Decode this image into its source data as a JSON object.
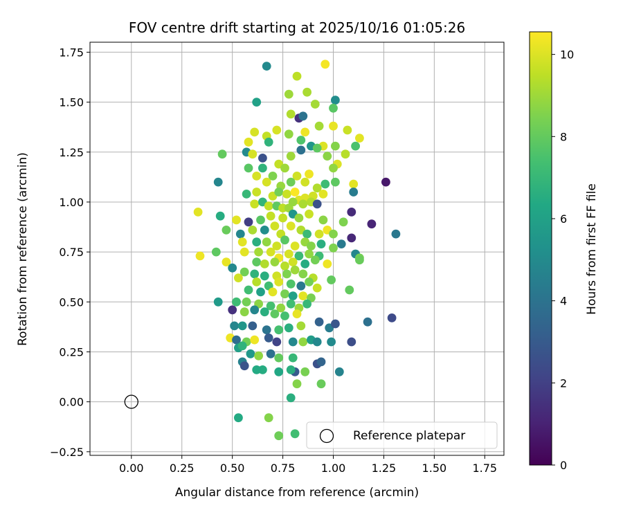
{
  "chart_data": {
    "type": "scatter",
    "title": "FOV centre drift starting at 2025/10/16 01:05:26",
    "xlabel": "Angular distance from reference (arcmin)",
    "ylabel": "Rotation from reference (arcmin)",
    "xlim": [
      -0.205,
      1.845
    ],
    "ylim": [
      -0.268,
      1.8
    ],
    "xticks": [
      0.0,
      0.25,
      0.5,
      0.75,
      1.0,
      1.25,
      1.5,
      1.75
    ],
    "xtick_labels": [
      "0.00",
      "0.25",
      "0.50",
      "0.75",
      "1.00",
      "1.25",
      "1.50",
      "1.75"
    ],
    "yticks": [
      -0.25,
      0.0,
      0.25,
      0.5,
      0.75,
      1.0,
      1.25,
      1.5,
      1.75
    ],
    "ytick_labels": [
      "−0.25",
      "0.00",
      "0.25",
      "0.50",
      "0.75",
      "1.00",
      "1.25",
      "1.50",
      "1.75"
    ],
    "grid": true,
    "colormap": "viridis",
    "colorbar": {
      "label": "Hours from first FF file",
      "range": [
        0,
        10.55
      ],
      "ticks": [
        0,
        2,
        4,
        6,
        8,
        10
      ],
      "tick_labels": [
        "0",
        "2",
        "4",
        "6",
        "8",
        "10"
      ]
    },
    "legend": {
      "position": "lower-right",
      "entries": [
        {
          "label": "Reference platepar",
          "marker": "open-circle"
        }
      ]
    },
    "reference_point": {
      "x": 0.0,
      "y": 0.0
    },
    "points": [
      [
        0.67,
        1.68,
        5.0
      ],
      [
        0.82,
        1.63,
        9.5
      ],
      [
        0.96,
        1.69,
        10.4
      ],
      [
        0.87,
        1.55,
        9.2
      ],
      [
        0.62,
        1.5,
        6.0
      ],
      [
        1.01,
        1.51,
        5.1
      ],
      [
        0.78,
        1.54,
        9.0
      ],
      [
        1.0,
        1.47,
        7.8
      ],
      [
        0.91,
        1.49,
        9.1
      ],
      [
        0.79,
        1.44,
        9.3
      ],
      [
        0.83,
        1.42,
        1.5
      ],
      [
        0.85,
        1.43,
        4.0
      ],
      [
        0.93,
        1.38,
        9.1
      ],
      [
        1.0,
        1.38,
        10.2
      ],
      [
        1.07,
        1.36,
        9.7
      ],
      [
        0.67,
        1.33,
        9.6
      ],
      [
        0.61,
        1.35,
        9.9
      ],
      [
        0.72,
        1.36,
        9.9
      ],
      [
        0.78,
        1.34,
        8.8
      ],
      [
        0.86,
        1.35,
        10.3
      ],
      [
        0.84,
        1.31,
        7.6
      ],
      [
        0.58,
        1.3,
        10.1
      ],
      [
        0.68,
        1.3,
        6.8
      ],
      [
        0.95,
        1.28,
        10.0
      ],
      [
        1.01,
        1.28,
        8.6
      ],
      [
        1.13,
        1.32,
        10.1
      ],
      [
        0.89,
        1.28,
        5.5
      ],
      [
        0.84,
        1.26,
        3.9
      ],
      [
        1.06,
        1.24,
        9.4
      ],
      [
        1.11,
        1.28,
        7.5
      ],
      [
        0.45,
        1.24,
        8.0
      ],
      [
        0.57,
        1.25,
        5.0
      ],
      [
        0.6,
        1.24,
        9.9
      ],
      [
        0.65,
        1.22,
        2.6
      ],
      [
        0.73,
        1.19,
        9.6
      ],
      [
        0.79,
        1.23,
        9.0
      ],
      [
        0.92,
        1.27,
        7.9
      ],
      [
        0.97,
        1.23,
        8.7
      ],
      [
        1.02,
        1.19,
        10.0
      ],
      [
        1.0,
        1.17,
        8.8
      ],
      [
        0.58,
        1.17,
        7.8
      ],
      [
        0.65,
        1.17,
        6.8
      ],
      [
        0.7,
        1.13,
        8.5
      ],
      [
        0.76,
        1.17,
        9.0
      ],
      [
        0.82,
        1.13,
        9.8
      ],
      [
        0.88,
        1.14,
        10.3
      ],
      [
        0.62,
        1.13,
        9.9
      ],
      [
        0.67,
        1.1,
        9.9
      ],
      [
        0.43,
        1.1,
        4.8
      ],
      [
        0.74,
        1.08,
        8.9
      ],
      [
        0.79,
        1.1,
        8.2
      ],
      [
        0.86,
        1.1,
        9.8
      ],
      [
        0.92,
        1.07,
        9.3
      ],
      [
        0.96,
        1.09,
        7.2
      ],
      [
        1.01,
        1.1,
        7.9
      ],
      [
        1.1,
        1.09,
        10.1
      ],
      [
        1.26,
        1.1,
        0.7
      ],
      [
        0.57,
        1.04,
        7.0
      ],
      [
        0.62,
        1.05,
        9.7
      ],
      [
        0.7,
        1.03,
        9.7
      ],
      [
        0.73,
        1.05,
        8.3
      ],
      [
        0.77,
        1.04,
        9.7
      ],
      [
        0.81,
        1.05,
        10.5
      ],
      [
        0.83,
        1.01,
        10.0
      ],
      [
        0.86,
        1.02,
        10.0
      ],
      [
        0.9,
        1.03,
        9.8
      ],
      [
        0.95,
        1.04,
        10.1
      ],
      [
        1.1,
        1.05,
        4.4
      ],
      [
        0.61,
        0.99,
        9.7
      ],
      [
        0.65,
        1.0,
        6.9
      ],
      [
        0.68,
        0.98,
        9.6
      ],
      [
        0.72,
        0.98,
        7.9
      ],
      [
        0.75,
        0.97,
        9.5
      ],
      [
        0.78,
        0.97,
        9.0
      ],
      [
        0.8,
        1.0,
        8.9
      ],
      [
        0.85,
        0.99,
        9.2
      ],
      [
        0.89,
        1.0,
        9.3
      ],
      [
        0.92,
        0.99,
        2.6
      ],
      [
        0.33,
        0.95,
        10.1
      ],
      [
        0.44,
        0.93,
        6.5
      ],
      [
        0.52,
        0.91,
        10.1
      ],
      [
        0.58,
        0.9,
        1.9
      ],
      [
        0.64,
        0.91,
        7.8
      ],
      [
        0.69,
        0.93,
        9.6
      ],
      [
        0.75,
        0.92,
        9.6
      ],
      [
        0.8,
        0.94,
        5.5
      ],
      [
        0.83,
        0.92,
        8.9
      ],
      [
        0.88,
        0.94,
        9.7
      ],
      [
        0.95,
        0.91,
        8.7
      ],
      [
        1.09,
        0.95,
        1.3
      ],
      [
        1.05,
        0.9,
        8.5
      ],
      [
        1.19,
        0.89,
        1.1
      ],
      [
        0.47,
        0.86,
        8.1
      ],
      [
        0.54,
        0.84,
        4.8
      ],
      [
        0.6,
        0.86,
        9.2
      ],
      [
        0.66,
        0.86,
        5.1
      ],
      [
        0.71,
        0.88,
        9.8
      ],
      [
        0.74,
        0.84,
        9.6
      ],
      [
        0.79,
        0.88,
        10.0
      ],
      [
        0.84,
        0.86,
        9.3
      ],
      [
        0.87,
        0.84,
        7.1
      ],
      [
        0.93,
        0.84,
        9.8
      ],
      [
        0.97,
        0.86,
        10.3
      ],
      [
        1.0,
        0.84,
        8.6
      ],
      [
        1.31,
        0.84,
        4.2
      ],
      [
        1.09,
        0.82,
        1.2
      ],
      [
        0.55,
        0.8,
        10.1
      ],
      [
        0.62,
        0.8,
        6.6
      ],
      [
        0.67,
        0.8,
        8.8
      ],
      [
        0.72,
        0.78,
        9.8
      ],
      [
        0.76,
        0.81,
        7.8
      ],
      [
        0.81,
        0.78,
        10.0
      ],
      [
        0.86,
        0.8,
        8.9
      ],
      [
        0.89,
        0.78,
        8.6
      ],
      [
        0.94,
        0.79,
        6.6
      ],
      [
        1.04,
        0.79,
        4.3
      ],
      [
        0.42,
        0.75,
        7.9
      ],
      [
        0.56,
        0.75,
        10.1
      ],
      [
        0.63,
        0.75,
        9.1
      ],
      [
        0.69,
        0.75,
        9.9
      ],
      [
        0.73,
        0.72,
        10.3
      ],
      [
        0.78,
        0.74,
        9.9
      ],
      [
        0.83,
        0.73,
        7.1
      ],
      [
        0.88,
        0.74,
        8.8
      ],
      [
        0.93,
        0.73,
        7.2
      ],
      [
        1.0,
        0.77,
        8.5
      ],
      [
        1.11,
        0.74,
        4.8
      ],
      [
        1.13,
        0.72,
        8.3
      ],
      [
        0.34,
        0.73,
        10.3
      ],
      [
        0.47,
        0.7,
        10.2
      ],
      [
        0.62,
        0.7,
        7.9
      ],
      [
        0.66,
        0.69,
        9.3
      ],
      [
        0.71,
        0.7,
        8.9
      ],
      [
        0.76,
        0.68,
        9.4
      ],
      [
        0.8,
        0.7,
        9.8
      ],
      [
        0.86,
        0.69,
        6.5
      ],
      [
        0.91,
        0.71,
        8.3
      ],
      [
        0.97,
        0.69,
        10.3
      ],
      [
        1.13,
        0.71,
        8.1
      ],
      [
        0.5,
        0.67,
        4.9
      ],
      [
        0.56,
        0.65,
        8.3
      ],
      [
        0.61,
        0.64,
        6.8
      ],
      [
        0.66,
        0.63,
        6.6
      ],
      [
        0.72,
        0.63,
        9.8
      ],
      [
        0.77,
        0.64,
        8.5
      ],
      [
        0.81,
        0.66,
        9.0
      ],
      [
        0.85,
        0.64,
        8.6
      ],
      [
        0.9,
        0.62,
        9.4
      ],
      [
        0.53,
        0.62,
        9.8
      ],
      [
        0.62,
        0.6,
        9.4
      ],
      [
        0.68,
        0.58,
        7.3
      ],
      [
        0.73,
        0.6,
        10.0
      ],
      [
        0.79,
        0.59,
        7.6
      ],
      [
        0.84,
        0.58,
        4.2
      ],
      [
        0.88,
        0.6,
        8.3
      ],
      [
        0.92,
        0.57,
        9.7
      ],
      [
        0.99,
        0.61,
        8.0
      ],
      [
        0.58,
        0.56,
        7.3
      ],
      [
        0.64,
        0.55,
        6.0
      ],
      [
        0.7,
        0.55,
        10.1
      ],
      [
        0.76,
        0.54,
        8.4
      ],
      [
        0.8,
        0.53,
        6.0
      ],
      [
        0.85,
        0.53,
        10.1
      ],
      [
        0.89,
        0.52,
        8.4
      ],
      [
        1.08,
        0.56,
        8.0
      ],
      [
        0.52,
        0.5,
        7.2
      ],
      [
        0.57,
        0.5,
        8.3
      ],
      [
        0.63,
        0.49,
        8.7
      ],
      [
        0.69,
        0.48,
        7.4
      ],
      [
        0.74,
        0.47,
        8.8
      ],
      [
        0.79,
        0.49,
        7.3
      ],
      [
        0.83,
        0.47,
        9.0
      ],
      [
        0.87,
        0.49,
        7.0
      ],
      [
        0.43,
        0.5,
        5.7
      ],
      [
        0.5,
        0.46,
        1.5
      ],
      [
        0.56,
        0.45,
        8.7
      ],
      [
        0.61,
        0.46,
        4.8
      ],
      [
        0.66,
        0.45,
        6.6
      ],
      [
        0.71,
        0.44,
        7.9
      ],
      [
        0.76,
        0.43,
        7.4
      ],
      [
        0.82,
        0.44,
        10.2
      ],
      [
        0.51,
        0.38,
        4.8
      ],
      [
        0.55,
        0.38,
        5.5
      ],
      [
        0.6,
        0.38,
        3.2
      ],
      [
        0.67,
        0.36,
        4.0
      ],
      [
        0.73,
        0.36,
        7.4
      ],
      [
        0.78,
        0.37,
        6.6
      ],
      [
        0.84,
        0.38,
        9.1
      ],
      [
        0.93,
        0.4,
        3.3
      ],
      [
        0.98,
        0.37,
        4.4
      ],
      [
        1.01,
        0.39,
        2.8
      ],
      [
        1.17,
        0.4,
        3.9
      ],
      [
        1.29,
        0.42,
        2.4
      ],
      [
        0.49,
        0.32,
        10.3
      ],
      [
        0.52,
        0.31,
        3.7
      ],
      [
        0.57,
        0.3,
        8.3
      ],
      [
        0.61,
        0.31,
        10.3
      ],
      [
        0.68,
        0.32,
        3.0
      ],
      [
        0.72,
        0.3,
        2.1
      ],
      [
        0.8,
        0.3,
        4.9
      ],
      [
        0.85,
        0.3,
        8.8
      ],
      [
        0.89,
        0.31,
        5.8
      ],
      [
        0.92,
        0.3,
        4.9
      ],
      [
        0.99,
        0.3,
        5.0
      ],
      [
        1.09,
        0.3,
        2.5
      ],
      [
        0.53,
        0.27,
        5.9
      ],
      [
        0.55,
        0.28,
        6.8
      ],
      [
        0.59,
        0.24,
        5.6
      ],
      [
        0.63,
        0.23,
        8.8
      ],
      [
        0.69,
        0.24,
        3.9
      ],
      [
        0.73,
        0.22,
        8.0
      ],
      [
        0.8,
        0.22,
        7.0
      ],
      [
        0.55,
        0.2,
        4.6
      ],
      [
        0.56,
        0.18,
        2.7
      ],
      [
        0.65,
        0.16,
        6.5
      ],
      [
        0.62,
        0.16,
        6.4
      ],
      [
        0.73,
        0.15,
        6.3
      ],
      [
        0.81,
        0.15,
        3.0
      ],
      [
        0.86,
        0.15,
        8.4
      ],
      [
        0.92,
        0.19,
        2.6
      ],
      [
        0.94,
        0.2,
        3.4
      ],
      [
        1.03,
        0.15,
        4.7
      ],
      [
        0.79,
        0.16,
        6.6
      ],
      [
        0.82,
        0.09,
        8.6
      ],
      [
        0.94,
        0.09,
        8.1
      ],
      [
        0.79,
        0.02,
        6.6
      ],
      [
        0.53,
        -0.08,
        6.4
      ],
      [
        0.68,
        -0.08,
        8.6
      ],
      [
        0.73,
        -0.17,
        8.2
      ],
      [
        0.81,
        -0.16,
        7.3
      ]
    ]
  }
}
